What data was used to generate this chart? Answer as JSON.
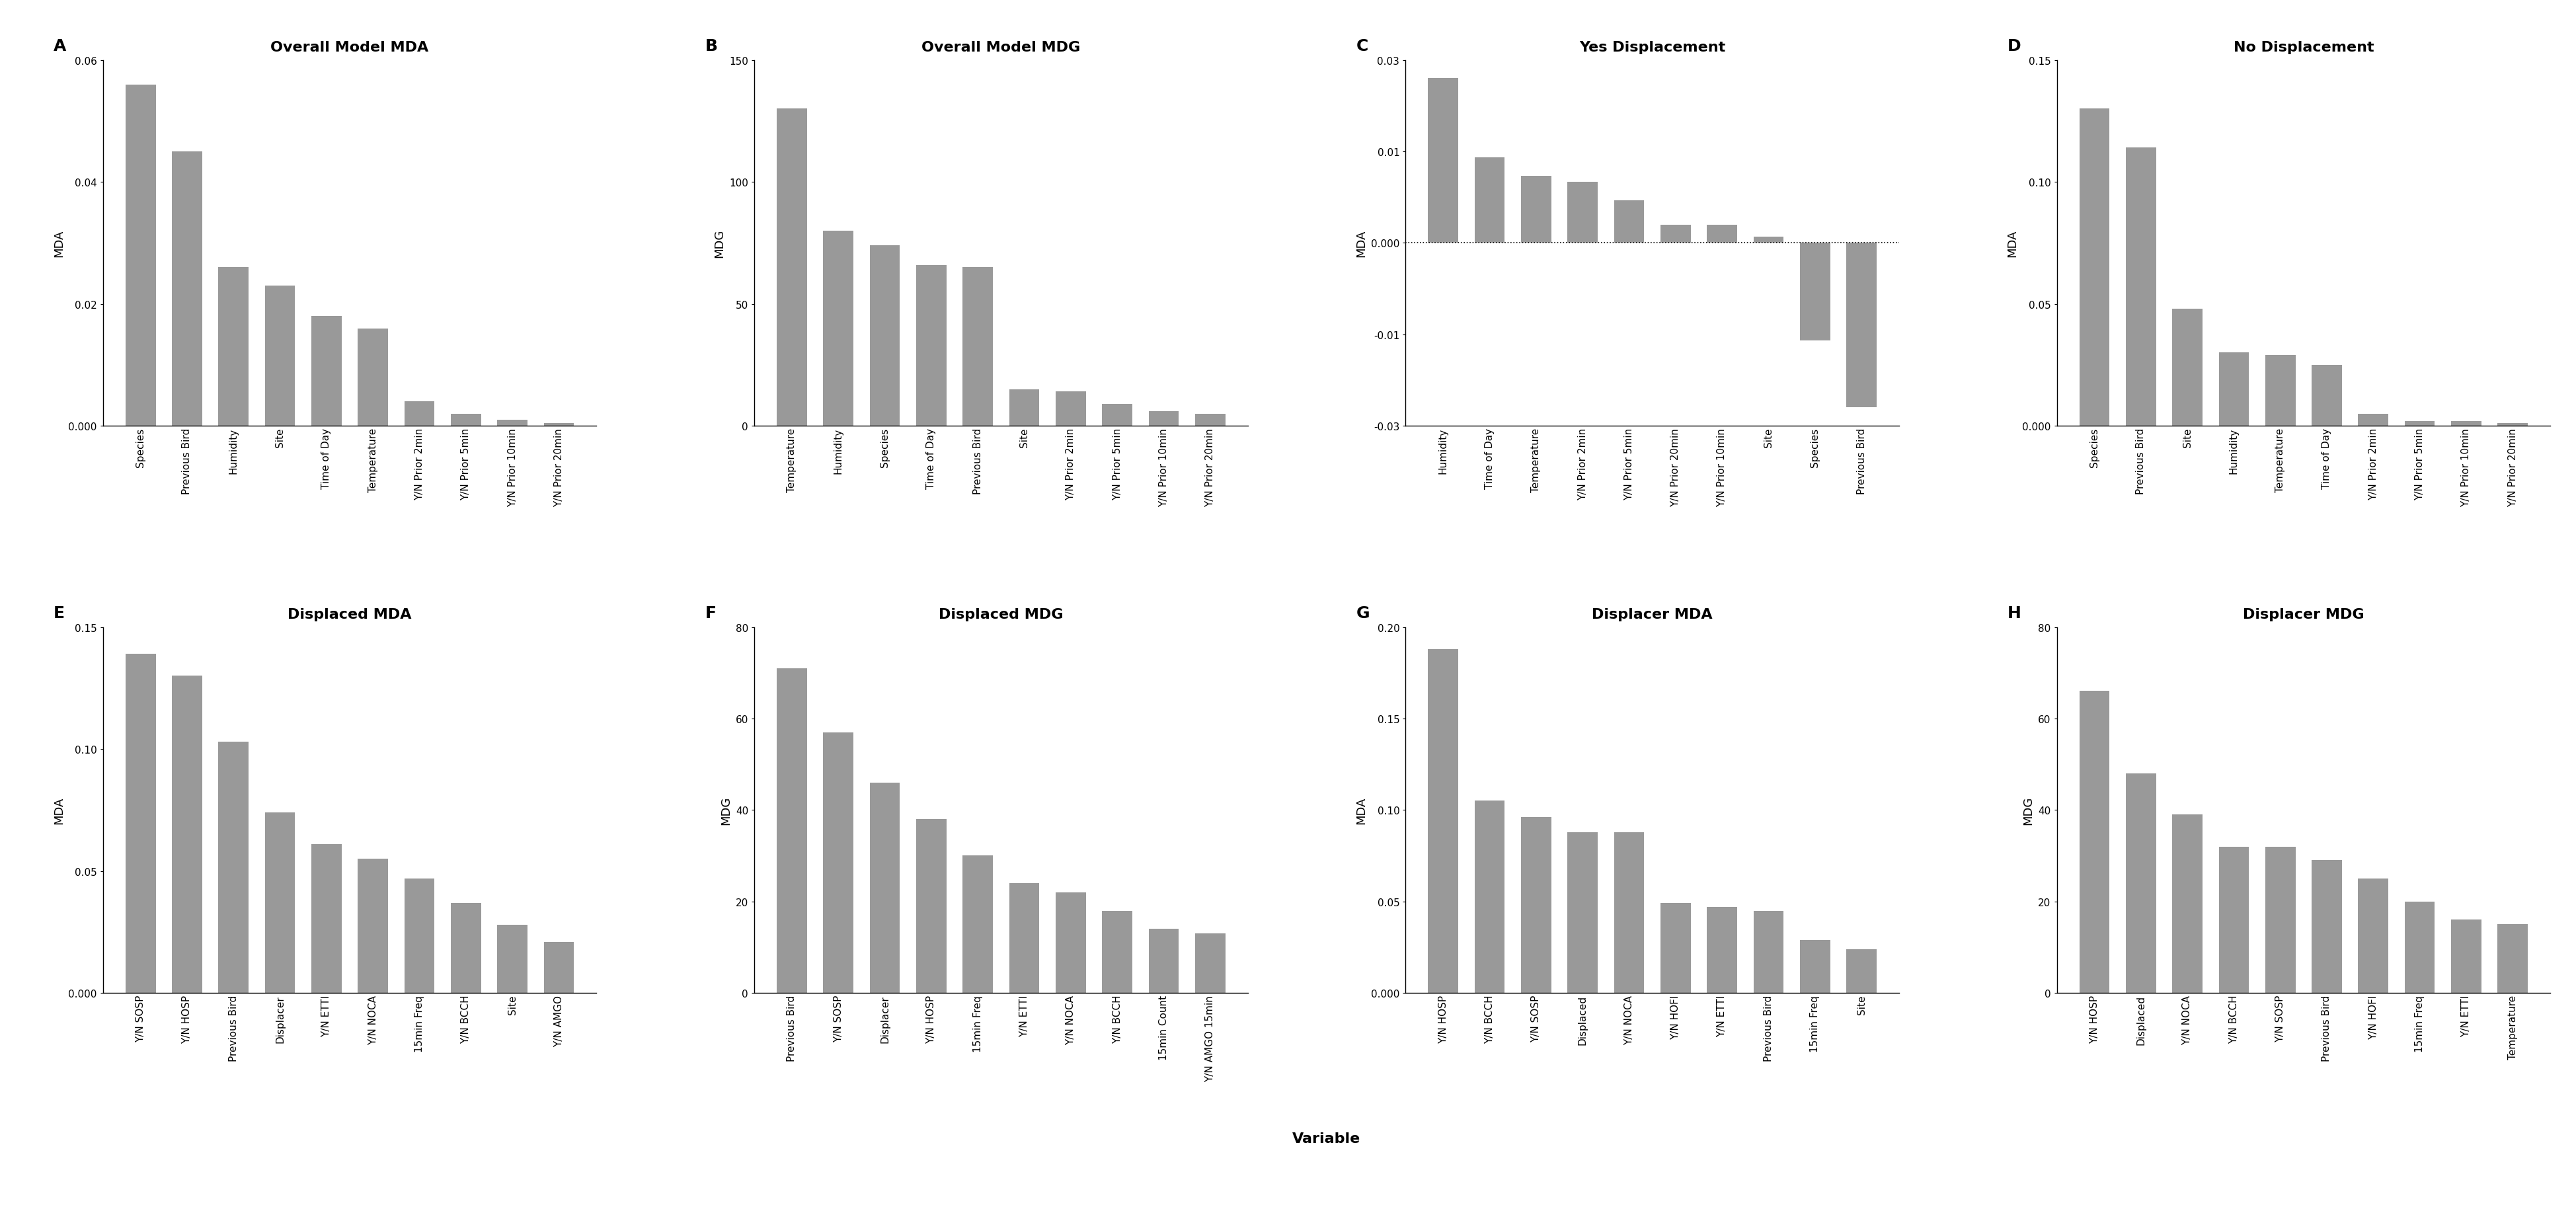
{
  "panels": [
    {
      "label": "A",
      "title": "Overall Model MDA",
      "ylabel": "MDA",
      "ylim": [
        0,
        0.06
      ],
      "yticks": [
        0.0,
        0.02,
        0.04,
        0.06
      ],
      "has_dotted_line": false,
      "categories": [
        "Species",
        "Previous Bird",
        "Humidity",
        "Site",
        "Time of Day",
        "Temperature",
        "Y/N Prior 2min",
        "Y/N Prior 5min",
        "Y/N Prior 10min",
        "Y/N Prior 20min"
      ],
      "values": [
        0.056,
        0.045,
        0.026,
        0.023,
        0.018,
        0.016,
        0.004,
        0.002,
        0.001,
        0.0005
      ]
    },
    {
      "label": "B",
      "title": "Overall Model MDG",
      "ylabel": "MDG",
      "ylim": [
        0,
        150
      ],
      "yticks": [
        0,
        50,
        100,
        150
      ],
      "has_dotted_line": false,
      "categories": [
        "Temperature",
        "Humidity",
        "Species",
        "Time of Day",
        "Previous Bird",
        "Site",
        "Y/N Prior 2min",
        "Y/N Prior 5min",
        "Y/N Prior 10min",
        "Y/N Prior 20min"
      ],
      "values": [
        130,
        80,
        74,
        66,
        65,
        15,
        14,
        9,
        6,
        5
      ]
    },
    {
      "label": "C",
      "title": "Yes Displacement",
      "ylabel": "MDA",
      "ylim": [
        -0.03,
        0.03
      ],
      "yticks": [
        -0.03,
        -0.015,
        0.0,
        0.015,
        0.03
      ],
      "has_dotted_line": true,
      "categories": [
        "Humidity",
        "Time of Day",
        "Temperature",
        "Y/N Prior 2min",
        "Y/N Prior 5min",
        "Y/N Prior 20min",
        "Y/N Prior 10min",
        "Site",
        "Species",
        "Previous Bird"
      ],
      "values": [
        0.027,
        0.014,
        0.011,
        0.01,
        0.007,
        0.003,
        0.003,
        0.001,
        -0.016,
        -0.027
      ]
    },
    {
      "label": "D",
      "title": "No Displacement",
      "ylabel": "MDA",
      "ylim": [
        0,
        0.15
      ],
      "yticks": [
        0.0,
        0.05,
        0.1,
        0.15
      ],
      "has_dotted_line": false,
      "categories": [
        "Species",
        "Previous Bird",
        "Site",
        "Humidity",
        "Temperature",
        "Time of Day",
        "Y/N Prior 2min",
        "Y/N Prior 5min",
        "Y/N Prior 10min",
        "Y/N Prior 20min"
      ],
      "values": [
        0.13,
        0.114,
        0.048,
        0.03,
        0.029,
        0.025,
        0.005,
        0.002,
        0.002,
        0.001
      ]
    },
    {
      "label": "E",
      "title": "Displaced MDA",
      "ylabel": "MDA",
      "ylim": [
        0,
        0.15
      ],
      "yticks": [
        0.0,
        0.05,
        0.1,
        0.15
      ],
      "has_dotted_line": false,
      "categories": [
        "Y/N SOSP",
        "Y/N HOSP",
        "Previous Bird",
        "Displacer",
        "Y/N ETTI",
        "Y/N NOCA",
        "15min Freq",
        "Y/N BCCH",
        "Site",
        "Y/N AMGO"
      ],
      "values": [
        0.139,
        0.13,
        0.103,
        0.074,
        0.061,
        0.055,
        0.047,
        0.037,
        0.028,
        0.021
      ]
    },
    {
      "label": "F",
      "title": "Displaced MDG",
      "ylabel": "MDG",
      "ylim": [
        0,
        80
      ],
      "yticks": [
        0,
        20,
        40,
        60,
        80
      ],
      "has_dotted_line": false,
      "categories": [
        "Previous Bird",
        "Y/N SOSP",
        "Displacer",
        "Y/N HOSP",
        "15min Freq",
        "Y/N ETTI",
        "Y/N NOCA",
        "Y/N BCCH",
        "15min Count",
        "Y/N AMGO 15min"
      ],
      "values": [
        71,
        57,
        46,
        38,
        30,
        24,
        22,
        18,
        14,
        13
      ]
    },
    {
      "label": "G",
      "title": "Displacer MDA",
      "ylabel": "MDA",
      "ylim": [
        0,
        0.2
      ],
      "yticks": [
        0.0,
        0.05,
        0.1,
        0.15,
        0.2
      ],
      "has_dotted_line": false,
      "categories": [
        "Y/N HOSP",
        "Y/N BCCH",
        "Y/N SOSP",
        "Displaced",
        "Y/N NOCA",
        "Y/N HOFI",
        "Y/N ETTI",
        "Previous Bird",
        "15min Freq",
        "Site"
      ],
      "values": [
        0.188,
        0.105,
        0.096,
        0.088,
        0.088,
        0.049,
        0.047,
        0.045,
        0.029,
        0.024
      ]
    },
    {
      "label": "H",
      "title": "Displacer MDG",
      "ylabel": "MDG",
      "ylim": [
        0,
        80
      ],
      "yticks": [
        0,
        20,
        40,
        60,
        80
      ],
      "has_dotted_line": false,
      "categories": [
        "Y/N HOSP",
        "Displaced",
        "Y/N NOCA",
        "Y/N BCCH",
        "Y/N SOSP",
        "Previous Bird",
        "Y/N HOFI",
        "15min Freq",
        "Y/N ETTI",
        "Temperature"
      ],
      "values": [
        66,
        48,
        39,
        32,
        32,
        29,
        25,
        20,
        16,
        15
      ]
    }
  ],
  "bar_color": "#999999",
  "xlabel": "Variable",
  "title_fontsize": 16,
  "tick_fontsize": 11,
  "xlabel_fontsize": 16,
  "ylabel_fontsize": 13,
  "panel_label_fontsize": 18
}
